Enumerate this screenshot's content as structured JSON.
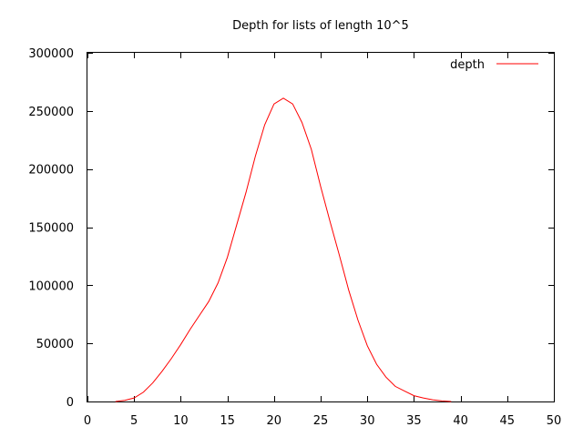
{
  "chart_data": {
    "type": "line",
    "title": "Depth for lists of length 10^5",
    "xlabel": "",
    "ylabel": "",
    "xlim": [
      0,
      50
    ],
    "ylim": [
      0,
      300000
    ],
    "xticks": [
      0,
      5,
      10,
      15,
      20,
      25,
      30,
      35,
      40,
      45,
      50
    ],
    "yticks": [
      0,
      50000,
      100000,
      150000,
      200000,
      250000,
      300000
    ],
    "grid": false,
    "legend_position": "top-right",
    "series": [
      {
        "name": "depth",
        "color": "#ff0000",
        "x": [
          3,
          4,
          5,
          6,
          7,
          8,
          9,
          10,
          11,
          12,
          13,
          14,
          15,
          16,
          17,
          18,
          19,
          20,
          21,
          22,
          23,
          24,
          25,
          26,
          27,
          28,
          29,
          30,
          31,
          32,
          33,
          34,
          35,
          36,
          37,
          38,
          39
        ],
        "y": [
          0,
          1000,
          3000,
          8000,
          16000,
          26000,
          37000,
          49000,
          62000,
          74000,
          86000,
          102000,
          124000,
          152000,
          180000,
          211000,
          238000,
          256000,
          261000,
          256000,
          240000,
          217000,
          185000,
          155000,
          126000,
          96000,
          70000,
          48000,
          32000,
          21000,
          13000,
          9000,
          5000,
          3000,
          1500,
          500,
          0
        ]
      }
    ]
  }
}
